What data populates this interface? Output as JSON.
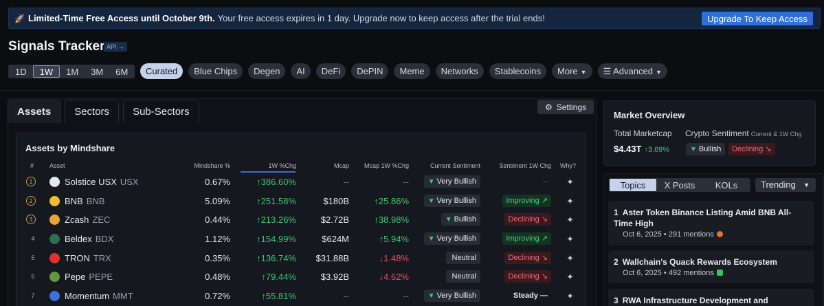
{
  "banner": {
    "bold": "Limited-Time Free Access until October 9th.",
    "text": "Your free access expires in 1 day. Upgrade now to keep access after the trial ends!",
    "button": "Upgrade To Keep Access"
  },
  "header": {
    "title": "Signals Tracker",
    "api_badge": "API →"
  },
  "periods": [
    "1D",
    "1W",
    "1M",
    "3M",
    "6M"
  ],
  "active_period": "1W",
  "chips": [
    "Curated",
    "Blue Chips",
    "Degen",
    "AI",
    "DeFi",
    "DePIN",
    "Meme",
    "Networks",
    "Stablecoins",
    "More"
  ],
  "advanced_label": "Advanced",
  "tabs": [
    "Assets",
    "Sectors",
    "Sub-Sectors"
  ],
  "settings_label": "Settings",
  "table": {
    "title": "Assets by Mindshare",
    "headers": [
      "#",
      "Asset",
      "Mindshare %",
      "1W %Chg",
      "Mcap",
      "Mcap 1W %Chg",
      "Current Sentiment",
      "Sentiment 1W Chg",
      "Why?"
    ],
    "rows": [
      {
        "rank": "1",
        "name": "Solstice USX",
        "ticker": "USX",
        "ms": "0.67%",
        "chg": "↑386.60%",
        "mcap": "--",
        "mchg": "--",
        "sent": "Very Bullish",
        "s1w": "--",
        "s1w_type": "dash",
        "coin": "#e6e8ec"
      },
      {
        "rank": "2",
        "name": "BNB",
        "ticker": "BNB",
        "ms": "5.09%",
        "chg": "↑251.58%",
        "mcap": "$180B",
        "mchg": "↑25.86%",
        "mchg_dir": "up",
        "sent": "Very Bullish",
        "s1w": "Improving ↗",
        "s1w_type": "improving",
        "coin": "#f3ba2f"
      },
      {
        "rank": "3",
        "name": "Zcash",
        "ticker": "ZEC",
        "ms": "0.44%",
        "chg": "↑213.26%",
        "mcap": "$2.72B",
        "mchg": "↑38.98%",
        "mchg_dir": "up",
        "sent": "Bullish",
        "s1w": "Declining ↘",
        "s1w_type": "declining",
        "coin": "#e8a33d"
      },
      {
        "rank": "4",
        "name": "Beldex",
        "ticker": "BDX",
        "ms": "1.12%",
        "chg": "↑154.99%",
        "mcap": "$624M",
        "mchg": "↑5.94%",
        "mchg_dir": "up",
        "sent": "Very Bullish",
        "s1w": "Improving ↗",
        "s1w_type": "improving",
        "coin": "#2f6e54"
      },
      {
        "rank": "5",
        "name": "TRON",
        "ticker": "TRX",
        "ms": "0.35%",
        "chg": "↑136.74%",
        "mcap": "$31.88B",
        "mchg": "↓1.48%",
        "mchg_dir": "down",
        "sent": "Neutral",
        "s1w": "Declining ↘",
        "s1w_type": "declining",
        "coin": "#e0302f"
      },
      {
        "rank": "6",
        "name": "Pepe",
        "ticker": "PEPE",
        "ms": "0.48%",
        "chg": "↑79.44%",
        "mcap": "$3.92B",
        "mchg": "↓4.62%",
        "mchg_dir": "down",
        "sent": "Neutral",
        "s1w": "Declining ↘",
        "s1w_type": "declining",
        "coin": "#5d9c3d"
      },
      {
        "rank": "7",
        "name": "Momentum",
        "ticker": "MMT",
        "ms": "0.72%",
        "chg": "↑55.81%",
        "mcap": "--",
        "mchg": "--",
        "sent": "Very Bullish",
        "s1w": "Steady —",
        "s1w_type": "steady",
        "coin": "#3d6fe0"
      }
    ]
  },
  "market": {
    "title": "Market Overview",
    "mcap_label": "Total Marketcap",
    "mcap_value": "$4.43T",
    "mcap_chg": "↑3.69%",
    "sent_label": "Crypto Sentiment",
    "sent_sub": "Current & 1W Chg",
    "sent_value": "Bullish",
    "sent_chg": "Declining ↘"
  },
  "topics": {
    "segments": [
      "Topics",
      "X Posts",
      "KOLs"
    ],
    "sort": "Trending",
    "items": [
      {
        "n": "1",
        "title": "Aster Token Binance Listing Amid BNB All-Time High",
        "meta": "Oct 6, 2025 • 291 mentions",
        "dot": "#e0723a"
      },
      {
        "n": "2",
        "title": "Wallchain's Quack Rewards Ecosystem",
        "meta": "Oct 6, 2025 • 492 mentions",
        "dot": "#3fbf67"
      },
      {
        "n": "3",
        "title": "RWA Infrastructure Development and Adoption",
        "meta": "",
        "dot": ""
      }
    ]
  }
}
